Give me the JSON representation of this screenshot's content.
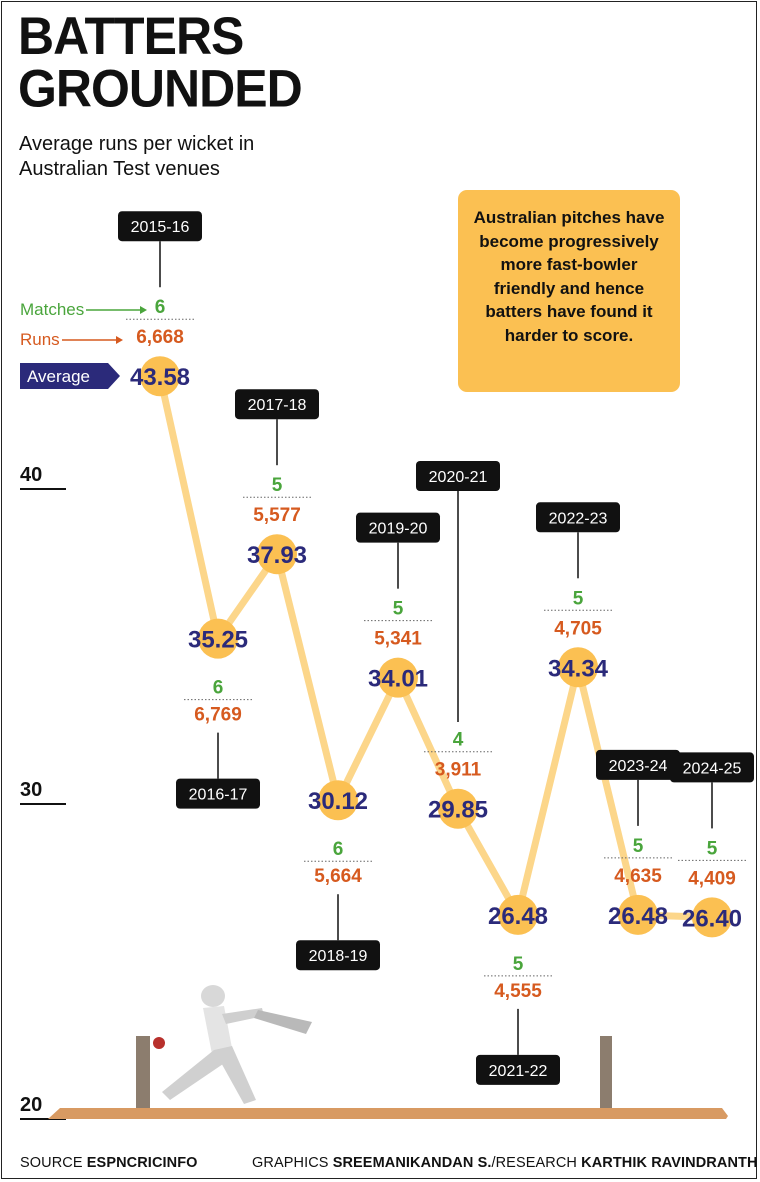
{
  "title_line1": "BATTERS",
  "title_line2": "GROUNDED",
  "subtitle": "Average runs per wicket in Australian Test venues",
  "note": "Australian pitches have become progressively more fast-bowler friendly and hence batters have found it harder to score.",
  "legend": {
    "matches": "Matches",
    "runs": "Runs",
    "average": "Average"
  },
  "footer": {
    "source_label": "SOURCE",
    "source": "ESPNCRICINFO",
    "graphics_label": "GRAPHICS",
    "graphics": "SREEMANIKANDAN S.",
    "research_label": "/RESEARCH",
    "research": "KARTHIK RAVINDRANTH"
  },
  "colors": {
    "average": "#2b2a7a",
    "matches": "#4aa53c",
    "runs": "#d65a1f",
    "line": "#fcd68a",
    "marker": "#fbc052",
    "note_bg": "#fbc052"
  },
  "chart_data": {
    "type": "line",
    "title": "BATTERS GROUNDED",
    "subtitle": "Average runs per wicket in Australian Test venues",
    "x": [
      "2015-16",
      "2016-17",
      "2017-18",
      "2018-19",
      "2019-20",
      "2020-21",
      "2021-22",
      "2022-23",
      "2023-24",
      "2024-25"
    ],
    "average_labels": [
      "43.58",
      "35.25",
      "37.93",
      "30.12",
      "34.01",
      "29.85",
      "26.48",
      "34.34",
      "26.48",
      "26.40"
    ],
    "series": [
      {
        "name": "Average",
        "values": [
          43.58,
          35.25,
          37.93,
          30.12,
          34.01,
          29.85,
          26.48,
          34.34,
          26.48,
          26.4
        ]
      },
      {
        "name": "Matches",
        "values": [
          6,
          6,
          5,
          6,
          5,
          4,
          5,
          5,
          5,
          5
        ]
      },
      {
        "name": "Runs",
        "values": [
          "6,668",
          "6,769",
          "5,577",
          "5,664",
          "5,341",
          "3,911",
          "4,555",
          "4,705",
          "4,635",
          "4,409"
        ]
      }
    ],
    "label_side": [
      "above",
      "below",
      "above",
      "below",
      "above",
      "above",
      "below",
      "above",
      "above",
      "above"
    ],
    "yticks": [
      40,
      30,
      20
    ],
    "ylim": [
      20,
      45
    ],
    "grid": false,
    "legend_placement": "left"
  }
}
